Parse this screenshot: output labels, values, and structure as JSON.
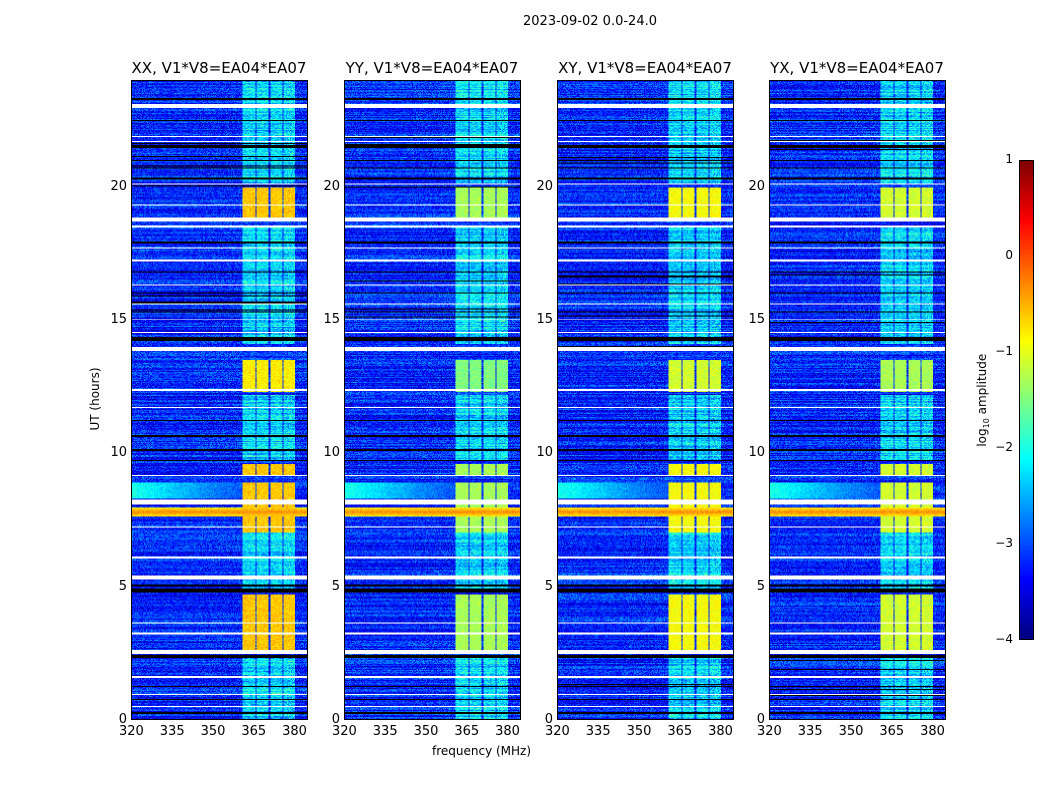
{
  "chart_data": {
    "type": "heatmap",
    "title": "2023-09-02 0.0-24.0",
    "xlabel": "frequency (MHz)",
    "ylabel": "UT (hours)",
    "xlim": [
      320,
      384
    ],
    "ylim": [
      0,
      24
    ],
    "xticks": [
      320,
      335,
      350,
      365,
      380
    ],
    "yticks": [
      0,
      5,
      10,
      15,
      20
    ],
    "panels": [
      {
        "title": "XX, V1*V8=EA04*EA07",
        "rfi_level": -0.6
      },
      {
        "title": "YY, V1*V8=EA04*EA07",
        "rfi_level": -1.3
      },
      {
        "title": "XY, V1*V8=EA04*EA07",
        "rfi_level": -0.9
      },
      {
        "title": "YX, V1*V8=EA04*EA07",
        "rfi_level": -1.1
      }
    ],
    "background_level": -3.2,
    "rfi_channels_mhz": [
      [
        360.5,
        365.2
      ],
      [
        365.8,
        370.0
      ],
      [
        370.6,
        375.0
      ],
      [
        375.6,
        380.0
      ]
    ],
    "rfi_time_blocks_hours": [
      [
        18.85,
        20.0,
        0
      ],
      [
        12.3,
        13.5,
        -0.2
      ],
      [
        9.2,
        9.6,
        0
      ],
      [
        7.0,
        8.9,
        0
      ],
      [
        2.6,
        4.7,
        0
      ]
    ],
    "weak_rfi_time_ranges_hours": [
      [
        20.1,
        24.0
      ],
      [
        14.1,
        18.5
      ],
      [
        9.7,
        12.2
      ],
      [
        4.8,
        7.0
      ],
      [
        0,
        2.4
      ]
    ],
    "broadband_rfi_hours": [
      7.6,
      7.95
    ],
    "broadband_rfi_level": -0.3,
    "low_freq_band_hours": [
      8.3,
      8.9
    ],
    "flagged_white_hours": [
      [
        23.0,
        23.15
      ],
      [
        21.9,
        21.95
      ],
      [
        21.7,
        21.75
      ],
      [
        20.1,
        20.15
      ],
      [
        19.3,
        19.35
      ],
      [
        18.7,
        18.85
      ],
      [
        18.5,
        18.55
      ],
      [
        17.7,
        17.75
      ],
      [
        17.2,
        17.3
      ],
      [
        16.3,
        16.35
      ],
      [
        15.6,
        15.65
      ],
      [
        15.0,
        15.05
      ],
      [
        14.5,
        14.55
      ],
      [
        13.85,
        14.0
      ],
      [
        12.35,
        12.4
      ],
      [
        11.7,
        11.75
      ],
      [
        9.15,
        9.2
      ],
      [
        8.05,
        8.25
      ],
      [
        7.2,
        7.25
      ],
      [
        6.05,
        6.1
      ],
      [
        5.25,
        5.4
      ],
      [
        3.6,
        3.65
      ],
      [
        3.2,
        3.25
      ],
      [
        2.45,
        2.6
      ],
      [
        1.55,
        1.6
      ],
      [
        0.9,
        0.95
      ],
      [
        0.45,
        0.5
      ]
    ],
    "flagged_black_hours": [
      [
        23.3,
        23.35
      ],
      [
        22.5,
        22.55
      ],
      [
        21.5,
        21.6
      ],
      [
        21.0,
        21.05
      ],
      [
        20.7,
        20.75
      ],
      [
        20.3,
        20.35
      ],
      [
        17.9,
        17.95
      ],
      [
        16.8,
        16.85
      ],
      [
        16.0,
        16.05
      ],
      [
        15.3,
        15.35
      ],
      [
        14.2,
        14.35
      ],
      [
        11.2,
        11.25
      ],
      [
        10.6,
        10.7
      ],
      [
        10.1,
        10.15
      ],
      [
        9.7,
        9.75
      ],
      [
        4.75,
        4.9
      ],
      [
        5.0,
        5.05
      ],
      [
        2.3,
        2.4
      ],
      [
        1.2,
        1.25
      ],
      [
        0.7,
        0.75
      ],
      [
        0.2,
        0.25
      ]
    ],
    "colorbar": {
      "label": "log",
      "label_sub": "10",
      "label_suffix": " amplitude",
      "range": [
        -4,
        1
      ],
      "ticks": [
        "1",
        "0",
        "−1",
        "−2",
        "−3",
        "−4"
      ],
      "colormap": "jet"
    }
  }
}
